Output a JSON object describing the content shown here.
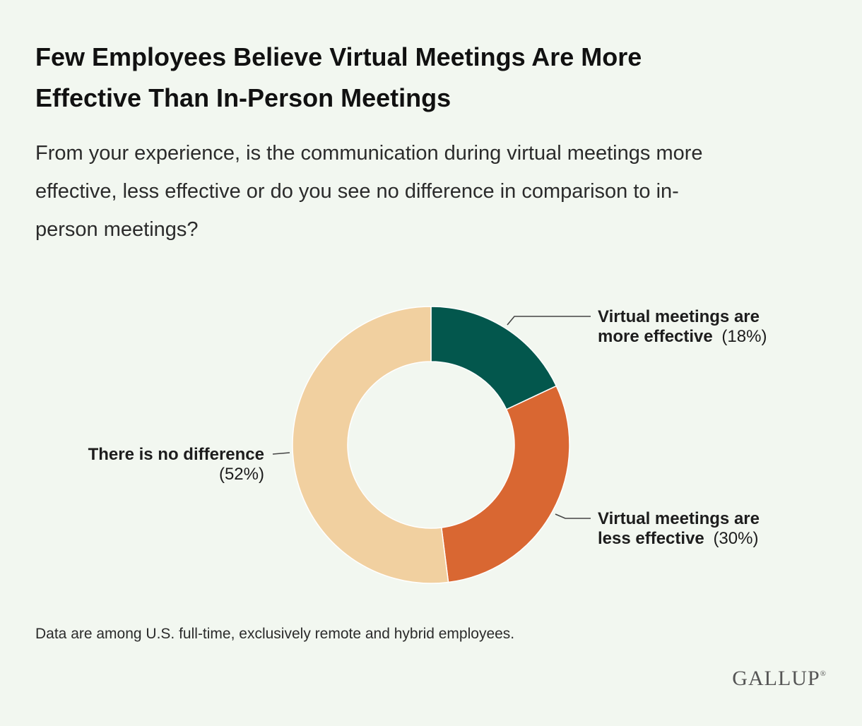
{
  "title_line1": "Few Employees Believe Virtual Meetings Are More",
  "title_line2": "Effective Than In-Person Meetings",
  "subtitle_line1": "From your experience, is the communication during virtual meetings more",
  "subtitle_line2": "effective, less effective or do you see no difference in comparison to in-",
  "subtitle_line3": "person meetings?",
  "footnote": "Data are among U.S. full-time, exclusively remote and hybrid employees.",
  "logo": "GALLUP",
  "logo_mark": "®",
  "chart_data": {
    "type": "pie",
    "donut": true,
    "slices": [
      {
        "label": "Virtual meetings are more effective",
        "value": 18,
        "value_label": "(18%)",
        "color": "#03574d"
      },
      {
        "label": "Virtual meetings are less effective",
        "value": 30,
        "value_label": "(30%)",
        "color": "#d96732"
      },
      {
        "label": "There is no difference",
        "value": 52,
        "value_label": "(52%)",
        "color": "#f1d0a0"
      }
    ],
    "labels": {
      "more_line1": "Virtual meetings are",
      "more_line2": "more effective",
      "more_value": "(18%)",
      "less_line1": "Virtual meetings are",
      "less_line2": "less effective",
      "less_value": "(30%)",
      "none_line1": "There is no difference",
      "none_value": "(52%)"
    }
  }
}
